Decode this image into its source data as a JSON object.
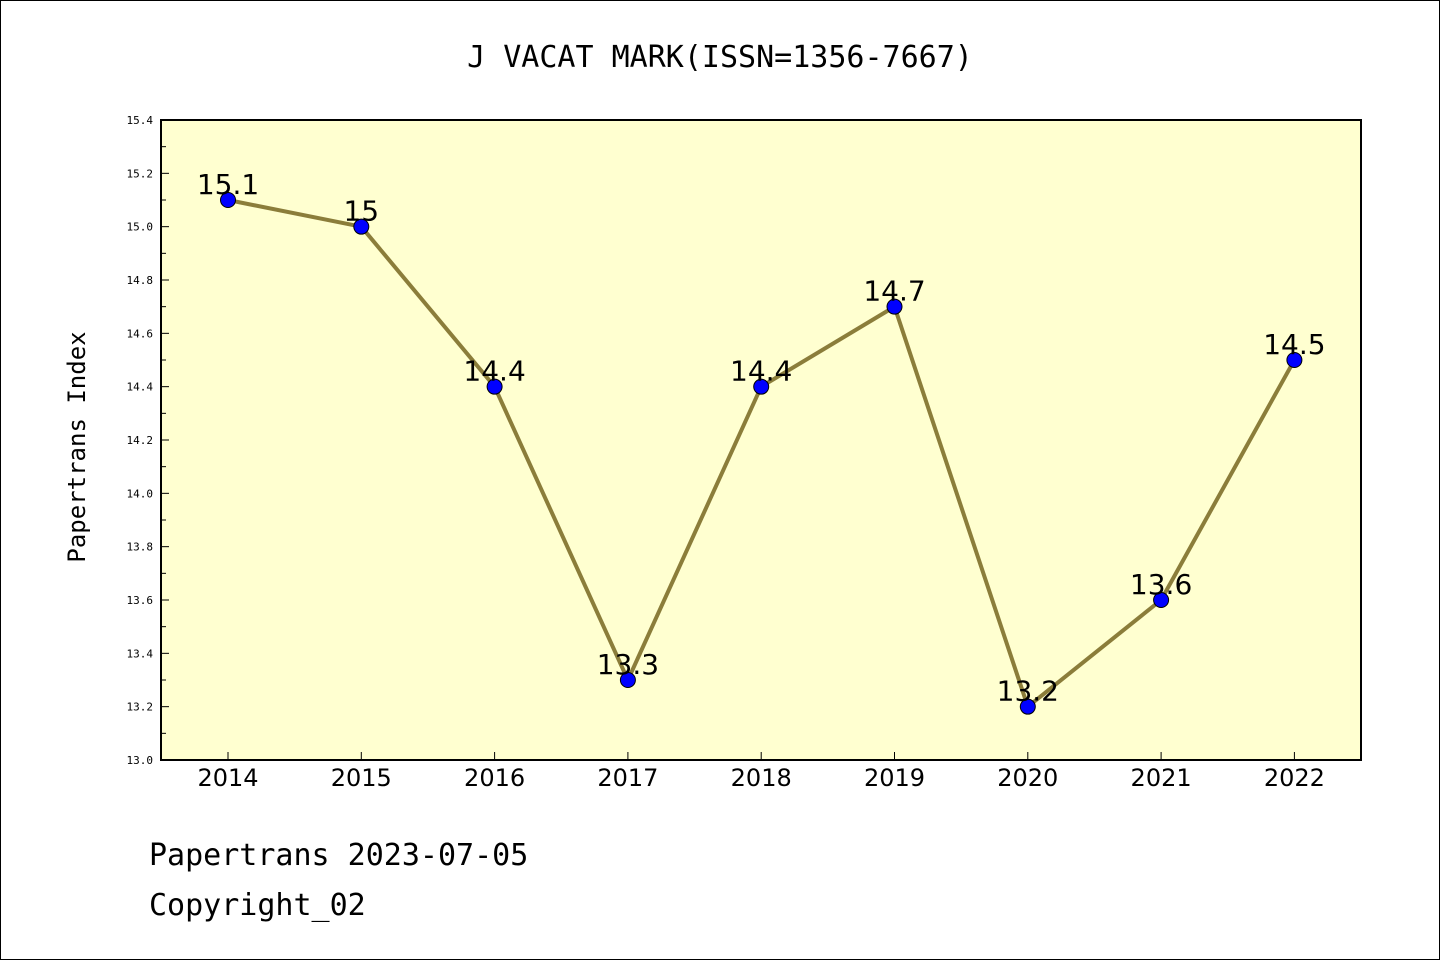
{
  "chart_data": {
    "type": "line",
    "title": "J VACAT MARK(ISSN=1356-7667)",
    "ylabel": "Papertrans Index",
    "xlabel": "",
    "ylim": [
      13.0,
      15.4
    ],
    "yticks": [
      "13.0",
      "13.2",
      "13.4",
      "13.6",
      "13.8",
      "14.0",
      "14.2",
      "14.4",
      "14.6",
      "14.8",
      "15.0",
      "15.2",
      "15.4"
    ],
    "categories": [
      "2014",
      "2015",
      "2016",
      "2017",
      "2018",
      "2019",
      "2020",
      "2021",
      "2022"
    ],
    "series": [
      {
        "values": [
          15.1,
          15.0,
          14.4,
          13.3,
          14.4,
          14.7,
          13.2,
          13.6,
          14.5
        ],
        "labels": [
          "15.1",
          "15",
          "14.4",
          "13.3",
          "14.4",
          "14.7",
          "13.2",
          "13.6",
          "14.5"
        ]
      }
    ],
    "grid": false,
    "colors": {
      "line": "#8b7d3a",
      "marker": "#0000ff",
      "plot_background": "#ffffd0"
    }
  },
  "footer": {
    "line1": "Papertrans 2023-07-05",
    "line2": "Copyright_02"
  }
}
